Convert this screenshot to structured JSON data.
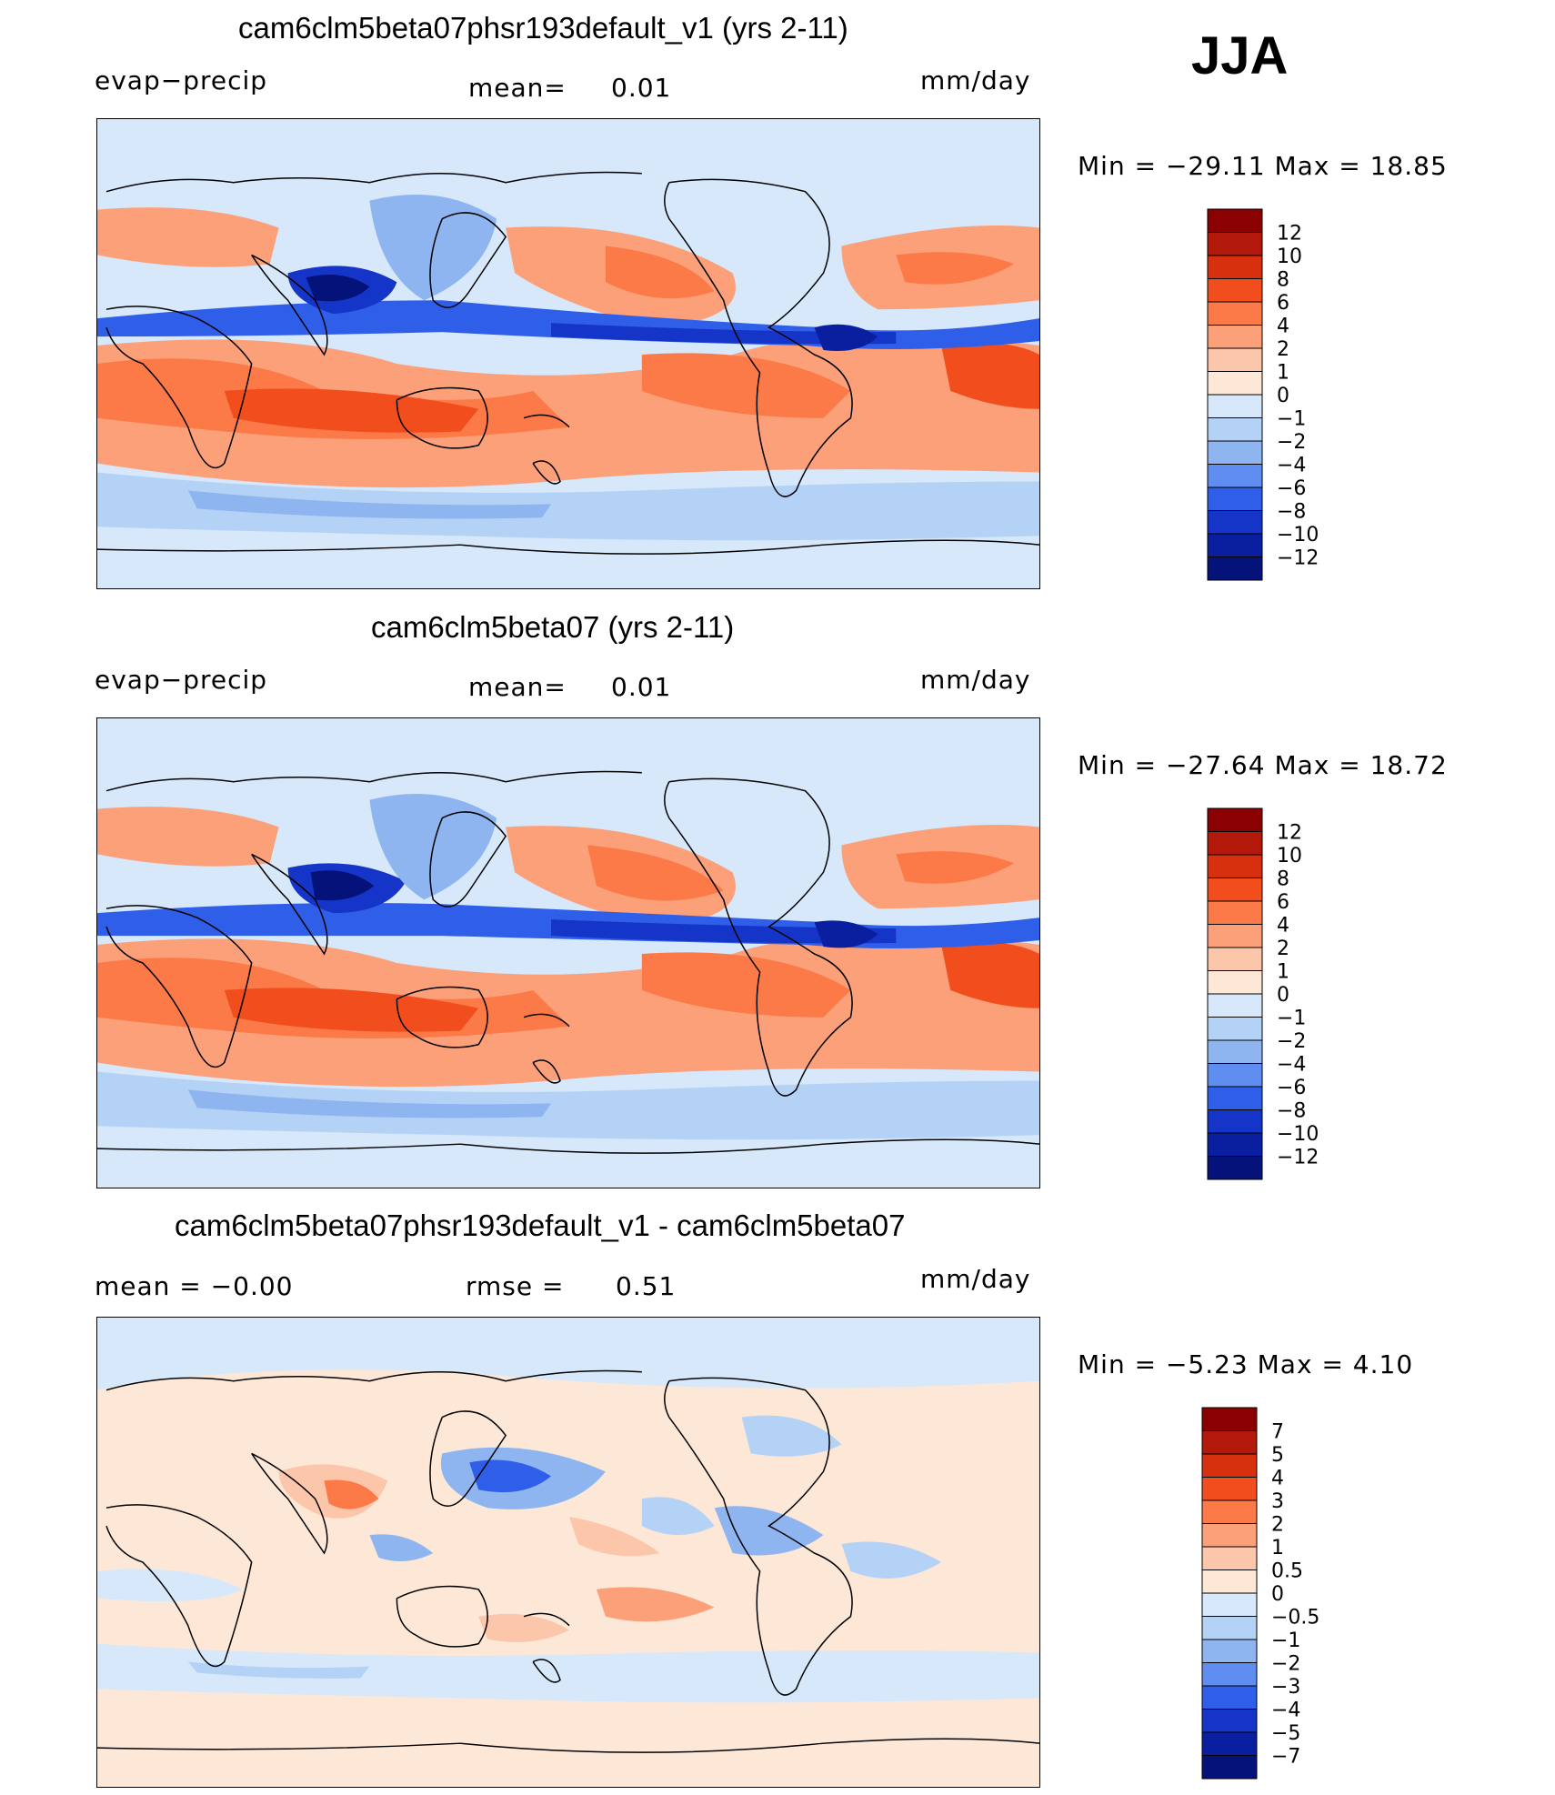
{
  "season": "JJA",
  "panels": [
    {
      "title": "cam6clm5beta07phsr193default_v1 (yrs 2-11)",
      "left_label": "evap−precip",
      "mid_label": "mean=",
      "mid_value": "0.01",
      "units": "mm/day",
      "minmax": "Min  =  −29.11  Max  =    18.85",
      "colorbar_labels": [
        "12",
        "10",
        "8",
        "6",
        "4",
        "2",
        "1",
        "0",
        "−1",
        "−2",
        "−4",
        "−6",
        "−8",
        "−10",
        "−12"
      ],
      "colorbar_colors": [
        "#8b0000",
        "#b2190a",
        "#d7300f",
        "#f24e1d",
        "#fb7a48",
        "#fca07a",
        "#fcc6aa",
        "#fde8d8",
        "#d6e8fa",
        "#b4d2f6",
        "#8fb5f0",
        "#5f8ef0",
        "#2f5fe8",
        "#1535c8",
        "#0a1fa0",
        "#05127a"
      ]
    },
    {
      "title": "cam6clm5beta07 (yrs 2-11)",
      "left_label": "evap−precip",
      "mid_label": "mean=",
      "mid_value": "0.01",
      "units": "mm/day",
      "minmax": "Min  =  −27.64  Max  =    18.72",
      "colorbar_labels": [
        "12",
        "10",
        "8",
        "6",
        "4",
        "2",
        "1",
        "0",
        "−1",
        "−2",
        "−4",
        "−6",
        "−8",
        "−10",
        "−12"
      ],
      "colorbar_colors": [
        "#8b0000",
        "#b2190a",
        "#d7300f",
        "#f24e1d",
        "#fb7a48",
        "#fca07a",
        "#fcc6aa",
        "#fde8d8",
        "#d6e8fa",
        "#b4d2f6",
        "#8fb5f0",
        "#5f8ef0",
        "#2f5fe8",
        "#1535c8",
        "#0a1fa0",
        "#05127a"
      ]
    },
    {
      "title": "cam6clm5beta07phsr193default_v1 - cam6clm5beta07",
      "left_label": "mean  =    −0.00",
      "mid_label": "rmse  =",
      "mid_value": "0.51",
      "units": "mm/day",
      "minmax": "Min  =    −5.23  Max  =      4.10",
      "colorbar_labels": [
        "7",
        "5",
        "4",
        "3",
        "2",
        "1",
        "0.5",
        "0",
        "−0.5",
        "−1",
        "−2",
        "−3",
        "−4",
        "−5",
        "−7"
      ],
      "colorbar_colors": [
        "#8b0000",
        "#b2190a",
        "#d7300f",
        "#f24e1d",
        "#fb7a48",
        "#fca07a",
        "#fcc6aa",
        "#fde8d8",
        "#d6e8fa",
        "#b4d2f6",
        "#8fb5f0",
        "#5f8ef0",
        "#2f5fe8",
        "#1535c8",
        "#0a1fa0",
        "#05127a"
      ]
    }
  ]
}
